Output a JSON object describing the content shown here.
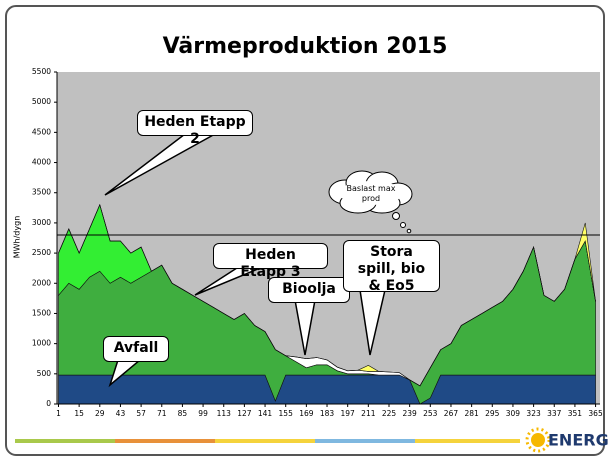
{
  "chart_data": {
    "type": "stacked_area",
    "title": "Värmeproduktion 2015",
    "y_label": "MWh/dygn",
    "x": [
      1,
      8,
      15,
      22,
      29,
      36,
      43,
      50,
      57,
      64,
      71,
      78,
      85,
      92,
      99,
      106,
      113,
      120,
      127,
      134,
      141,
      148,
      155,
      162,
      169,
      176,
      183,
      190,
      197,
      204,
      211,
      218,
      225,
      232,
      239,
      246,
      253,
      260,
      267,
      274,
      281,
      288,
      295,
      302,
      309,
      316,
      323,
      330,
      337,
      344,
      351,
      358,
      365
    ],
    "series": [
      {
        "name": "Avfall",
        "color": "#1f4a86",
        "values": [
          480,
          480,
          480,
          480,
          480,
          480,
          480,
          480,
          480,
          480,
          480,
          480,
          480,
          480,
          480,
          480,
          480,
          480,
          480,
          480,
          480,
          50,
          480,
          480,
          480,
          480,
          480,
          480,
          480,
          480,
          480,
          480,
          480,
          480,
          400,
          0,
          100,
          480,
          480,
          480,
          480,
          480,
          480,
          480,
          480,
          480,
          480,
          480,
          480,
          480,
          480,
          480,
          480
        ]
      },
      {
        "name": "Heden Etapp 3",
        "color": "#3fae3f",
        "values": [
          1320,
          1520,
          1420,
          1620,
          1720,
          1520,
          1620,
          1520,
          1620,
          1720,
          1820,
          1520,
          1420,
          1320,
          1220,
          1120,
          1020,
          920,
          1020,
          820,
          720,
          850,
          320,
          220,
          120,
          170,
          170,
          70,
          20,
          20,
          20,
          0,
          0,
          0,
          0,
          300,
          500,
          420,
          520,
          820,
          920,
          1020,
          1120,
          1220,
          1420,
          1720,
          2120,
          1320,
          1220,
          1420,
          1920,
          2220,
          1220
        ]
      },
      {
        "name": "Heden Etapp 2",
        "color": "#33ee33",
        "values": [
          700,
          900,
          600,
          800,
          1100,
          700,
          600,
          500,
          500,
          0,
          0,
          0,
          0,
          0,
          0,
          0,
          0,
          0,
          0,
          0,
          0,
          0,
          0,
          0,
          0,
          0,
          0,
          0,
          0,
          0,
          0,
          0,
          0,
          0,
          0,
          0,
          0,
          0,
          0,
          0,
          0,
          0,
          0,
          0,
          0,
          0,
          0,
          0,
          0,
          0,
          0,
          0,
          0
        ]
      },
      {
        "name": "Bioolja",
        "color": "#ffffff",
        "values": [
          0,
          0,
          0,
          0,
          0,
          0,
          0,
          0,
          0,
          0,
          0,
          0,
          0,
          0,
          0,
          0,
          0,
          0,
          0,
          0,
          0,
          0,
          0,
          80,
          150,
          120,
          80,
          60,
          50,
          60,
          40,
          60,
          50,
          40,
          0,
          0,
          0,
          0,
          0,
          0,
          0,
          0,
          0,
          0,
          0,
          0,
          0,
          0,
          0,
          0,
          0,
          0,
          0
        ]
      },
      {
        "name": "Stora spill, bio & Eo5",
        "color": "#ffff66",
        "values": [
          0,
          0,
          0,
          0,
          0,
          0,
          0,
          0,
          0,
          0,
          0,
          0,
          0,
          0,
          0,
          0,
          0,
          0,
          0,
          0,
          0,
          0,
          0,
          0,
          0,
          0,
          0,
          0,
          0,
          0,
          100,
          0,
          0,
          0,
          0,
          0,
          0,
          0,
          0,
          0,
          0,
          0,
          0,
          0,
          0,
          0,
          0,
          0,
          0,
          0,
          0,
          300,
          0
        ]
      }
    ],
    "xlim": [
      0,
      368
    ],
    "xticks": [
      1,
      15,
      29,
      43,
      57,
      71,
      85,
      99,
      113,
      127,
      141,
      155,
      169,
      183,
      197,
      211,
      225,
      239,
      253,
      267,
      281,
      295,
      309,
      323,
      337,
      351,
      365
    ],
    "ylim": [
      0,
      5500
    ],
    "yticks": [
      0,
      500,
      1000,
      1500,
      2000,
      2500,
      3000,
      3500,
      4000,
      4500,
      5000,
      5500
    ],
    "reference_line": {
      "value": 2800,
      "label": "Baslast max prod"
    },
    "logo": "ENERGI"
  }
}
